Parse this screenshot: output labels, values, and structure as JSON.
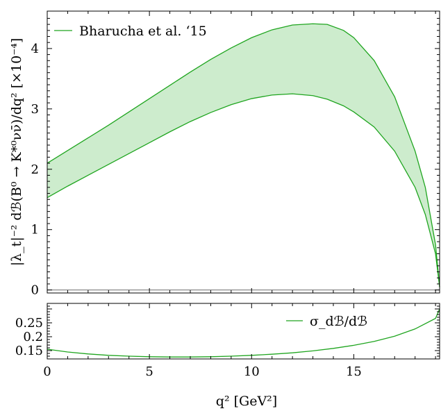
{
  "chart_data": [
    {
      "type": "area",
      "ylabel": "|λ_t|⁻² dℬ(B⁰ → K*⁰νν̄)/dq² [×10⁻⁴]",
      "xlim": [
        0,
        19.2
      ],
      "ylim": [
        -0.05,
        4.62
      ],
      "xticks": [
        0,
        5,
        10,
        15
      ],
      "yticks": [
        0,
        1,
        2,
        3,
        4
      ],
      "tick_labels_x": [
        "",
        "",
        "",
        ""
      ],
      "tick_labels_y": [
        "0",
        "1",
        "2",
        "3",
        "4"
      ],
      "legend_position": "top-left",
      "colors": {
        "band_fill": "#cdeccd",
        "band_line": "#1fa51f",
        "baseline": "#888888"
      },
      "series": [
        {
          "name": "Bharucha et al. ‘15",
          "x": [
            0,
            1,
            2,
            3,
            4,
            5,
            6,
            7,
            8,
            9,
            10,
            11,
            12,
            13,
            13.7,
            14.5,
            15,
            16,
            17,
            18,
            18.5,
            19,
            19.2
          ],
          "upper": [
            2.1,
            2.31,
            2.52,
            2.73,
            2.95,
            3.17,
            3.39,
            3.61,
            3.82,
            4.01,
            4.18,
            4.31,
            4.39,
            4.41,
            4.4,
            4.3,
            4.18,
            3.8,
            3.2,
            2.3,
            1.7,
            0.75,
            0.05
          ],
          "lower": [
            1.53,
            1.72,
            1.9,
            2.08,
            2.26,
            2.44,
            2.62,
            2.79,
            2.94,
            3.07,
            3.17,
            3.23,
            3.25,
            3.22,
            3.16,
            3.05,
            2.95,
            2.7,
            2.3,
            1.7,
            1.25,
            0.6,
            0.05
          ]
        }
      ]
    },
    {
      "type": "line",
      "xlabel": "q² [GeV²]",
      "xlim": [
        0,
        19.2
      ],
      "ylim": [
        0.12,
        0.32
      ],
      "xticks": [
        0,
        5,
        10,
        15
      ],
      "yticks": [
        0.15,
        0.2,
        0.25
      ],
      "tick_labels_x": [
        "0",
        "5",
        "10",
        "15"
      ],
      "tick_labels_y": [
        "0.15",
        "0.2",
        "0.25"
      ],
      "legend_position": "top-right",
      "series": [
        {
          "name": "σ_dℬ/dℬ",
          "x": [
            0,
            1,
            2,
            3,
            4,
            5,
            6,
            7,
            8,
            9,
            10,
            11,
            12,
            13,
            14,
            15,
            16,
            17,
            18,
            19,
            19.2
          ],
          "values": [
            0.155,
            0.145,
            0.138,
            0.133,
            0.13,
            0.128,
            0.127,
            0.127,
            0.128,
            0.13,
            0.133,
            0.137,
            0.142,
            0.149,
            0.158,
            0.169,
            0.183,
            0.202,
            0.228,
            0.266,
            0.3
          ]
        }
      ]
    }
  ]
}
